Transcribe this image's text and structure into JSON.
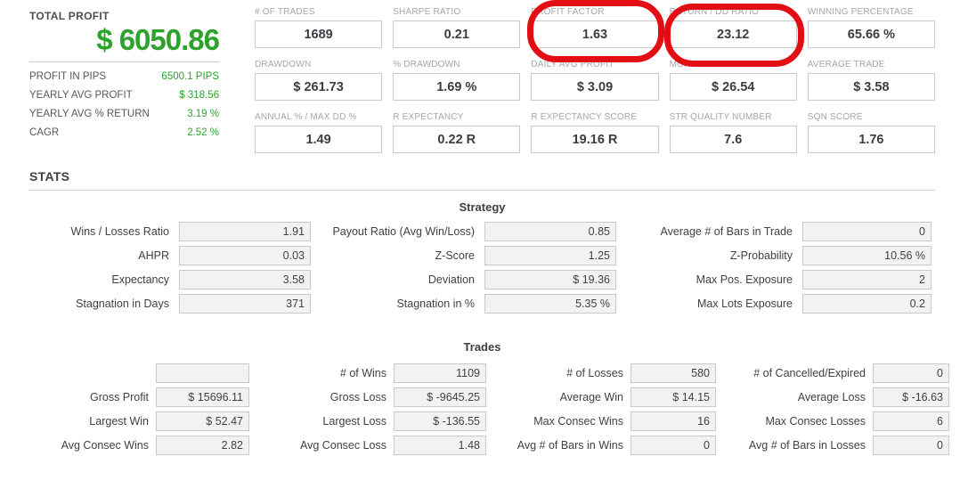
{
  "colors": {
    "accent_green": "#2da22d",
    "annotation_red": "#e30e13"
  },
  "summary": {
    "title": "TOTAL PROFIT",
    "total_profit": "$ 6050.86",
    "rows": [
      {
        "label": "PROFIT IN PIPS",
        "value": "6500.1 PIPS"
      },
      {
        "label": "YEARLY AVG PROFIT",
        "value": "$ 318.56"
      },
      {
        "label": "YEARLY AVG % RETURN",
        "value": "3.19 %"
      },
      {
        "label": "CAGR",
        "value": "2.52 %"
      }
    ]
  },
  "metrics": [
    {
      "label": "# OF TRADES",
      "value": "1689",
      "highlighted": false
    },
    {
      "label": "SHARPE RATIO",
      "value": "0.21",
      "highlighted": false
    },
    {
      "label": "PROFIT FACTOR",
      "value": "1.63",
      "highlighted": true
    },
    {
      "label": "RETURN / DD RATIO",
      "value": "23.12",
      "highlighted": true
    },
    {
      "label": "WINNING PERCENTAGE",
      "value": "65.66 %",
      "highlighted": false
    },
    {
      "label": "DRAWDOWN",
      "value": "$ 261.73",
      "highlighted": false
    },
    {
      "label": "% DRAWDOWN",
      "value": "1.69 %",
      "highlighted": false
    },
    {
      "label": "DAILY AVG PROFIT",
      "value": "$ 3.09",
      "highlighted": false
    },
    {
      "label": "MONTHLY AVG PROFIT",
      "value": "$ 26.54",
      "highlighted": false
    },
    {
      "label": "AVERAGE TRADE",
      "value": "$ 3.58",
      "highlighted": false
    },
    {
      "label": "ANNUAL % / MAX DD %",
      "value": "1.49",
      "highlighted": false
    },
    {
      "label": "R EXPECTANCY",
      "value": "0.22 R",
      "highlighted": false
    },
    {
      "label": "R EXPECTANCY SCORE",
      "value": "19.16 R",
      "highlighted": false
    },
    {
      "label": "STR QUALITY NUMBER",
      "value": "7.6",
      "highlighted": false
    },
    {
      "label": "SQN SCORE",
      "value": "1.76",
      "highlighted": false
    }
  ],
  "stats": {
    "heading": "STATS",
    "strategy": {
      "heading": "Strategy",
      "rows": [
        [
          {
            "label": "Wins / Losses Ratio",
            "value": "1.91"
          },
          {
            "label": "Payout Ratio (Avg Win/Loss)",
            "value": "0.85"
          },
          {
            "label": "Average # of Bars in Trade",
            "value": "0"
          }
        ],
        [
          {
            "label": "AHPR",
            "value": "0.03"
          },
          {
            "label": "Z-Score",
            "value": "1.25"
          },
          {
            "label": "Z-Probability",
            "value": "10.56 %"
          }
        ],
        [
          {
            "label": "Expectancy",
            "value": "3.58"
          },
          {
            "label": "Deviation",
            "value": "$ 19.36"
          },
          {
            "label": "Max Pos. Exposure",
            "value": "2"
          }
        ],
        [
          {
            "label": "Stagnation in Days",
            "value": "371"
          },
          {
            "label": "Stagnation in %",
            "value": "5.35 %"
          },
          {
            "label": "Max Lots Exposure",
            "value": "0.2"
          }
        ]
      ]
    },
    "trades": {
      "heading": "Trades",
      "rows": [
        [
          {
            "label": "",
            "value": ""
          },
          {
            "label": "# of Wins",
            "value": "1109"
          },
          {
            "label": "# of Losses",
            "value": "580"
          },
          {
            "label": "# of Cancelled/Expired",
            "value": "0"
          }
        ],
        [
          {
            "label": "Gross Profit",
            "value": "$ 15696.11"
          },
          {
            "label": "Gross Loss",
            "value": "$ -9645.25"
          },
          {
            "label": "Average Win",
            "value": "$ 14.15"
          },
          {
            "label": "Average Loss",
            "value": "$ -16.63"
          }
        ],
        [
          {
            "label": "Largest Win",
            "value": "$ 52.47"
          },
          {
            "label": "Largest Loss",
            "value": "$ -136.55"
          },
          {
            "label": "Max Consec Wins",
            "value": "16"
          },
          {
            "label": "Max Consec Losses",
            "value": "6"
          }
        ],
        [
          {
            "label": "Avg Consec Wins",
            "value": "2.82"
          },
          {
            "label": "Avg Consec Loss",
            "value": "1.48"
          },
          {
            "label": "Avg # of Bars in Wins",
            "value": "0"
          },
          {
            "label": "Avg # of Bars in Losses",
            "value": "0"
          }
        ]
      ]
    }
  }
}
